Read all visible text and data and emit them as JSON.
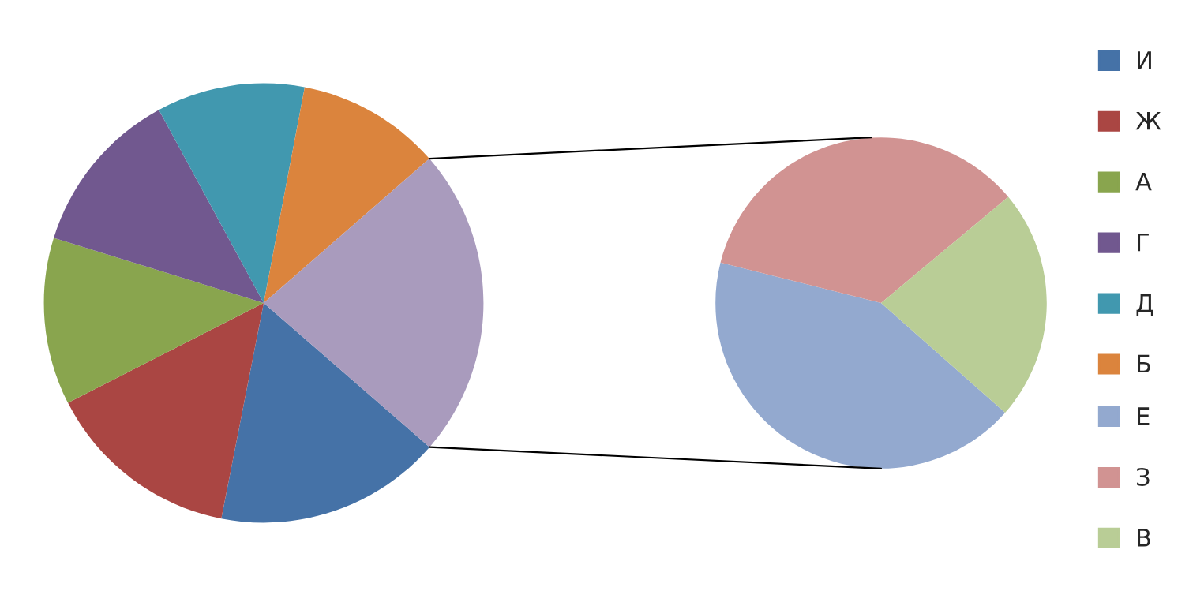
{
  "chart_data": [
    {
      "type": "pie",
      "categories": [
        "И",
        "Ж",
        "А",
        "Г",
        "Д",
        "Б",
        null
      ],
      "values": [
        16.7,
        14.4,
        12.3,
        12.3,
        10.9,
        10.6,
        22.8
      ],
      "colors": [
        "#4572a7",
        "#aa4643",
        "#89a54e",
        "#71588f",
        "#4198af",
        "#db843d",
        "#a99bbd"
      ],
      "legend": "right"
    },
    {
      "type": "pie",
      "categories": [
        "Е",
        "З",
        "В"
      ],
      "values": [
        42.4,
        35.0,
        22.6
      ],
      "colors": [
        "#93a9cf",
        "#d19392",
        "#b9cd96"
      ],
      "legend": "right"
    }
  ]
}
